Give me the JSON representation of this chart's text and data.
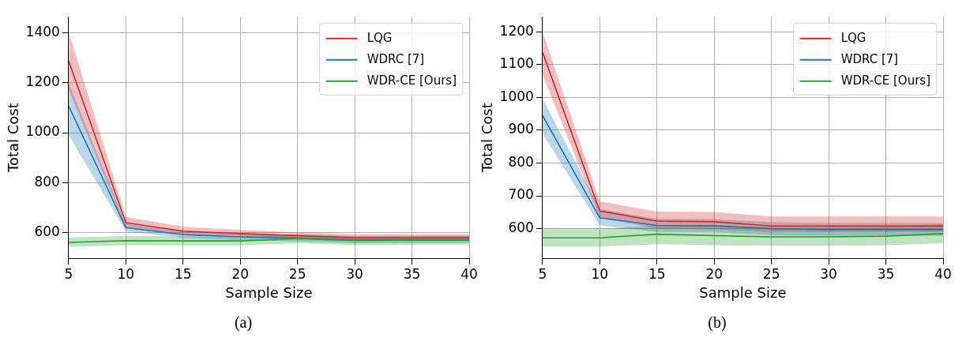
{
  "chart_data": [
    {
      "type": "line",
      "xlabel": "Sample Size",
      "ylabel": "Total Cost",
      "x": [
        5,
        10,
        15,
        20,
        25,
        30,
        35,
        40
      ],
      "xlim": [
        5,
        40
      ],
      "xticks": [
        5,
        10,
        15,
        20,
        25,
        30,
        35,
        40
      ],
      "ylim": [
        499,
        1463
      ],
      "yticks": [
        600,
        800,
        1000,
        1200,
        1400
      ],
      "grid": true,
      "legend": "top right",
      "annotations": [
        "(a)"
      ],
      "series": [
        {
          "name": "LQG",
          "color": "#d62728",
          "values": [
            1287,
            641,
            607,
            597,
            589,
            581,
            581,
            581
          ],
          "lower": [
            1172,
            619,
            592,
            583,
            576,
            568,
            568,
            568
          ],
          "upper": [
            1403,
            664,
            625,
            612,
            602,
            595,
            595,
            595
          ]
        },
        {
          "name": "WDRC [7]",
          "color": "#1f77b4",
          "values": [
            1107,
            621,
            593,
            584,
            579,
            572,
            573,
            573
          ],
          "lower": [
            991,
            606,
            580,
            571,
            566,
            559,
            560,
            560
          ],
          "upper": [
            1197,
            636,
            606,
            597,
            592,
            585,
            586,
            586
          ]
        },
        {
          "name": "WDR-CE [Ours]",
          "color": "#2ca02c",
          "values": [
            562,
            569,
            568,
            568,
            577,
            569,
            571,
            571
          ],
          "lower": [
            544,
            551,
            550,
            550,
            559,
            551,
            553,
            553
          ],
          "upper": [
            581,
            588,
            586,
            586,
            595,
            587,
            589,
            589
          ]
        }
      ]
    },
    {
      "type": "line",
      "xlabel": "Sample Size",
      "ylabel": "Total Cost",
      "x": [
        5,
        10,
        15,
        20,
        25,
        30,
        35,
        40
      ],
      "xlim": [
        5,
        40
      ],
      "xticks": [
        5,
        10,
        15,
        20,
        25,
        30,
        35,
        40
      ],
      "ylim": [
        510,
        1246
      ],
      "yticks": [
        600,
        700,
        800,
        900,
        1000,
        1100,
        1200
      ],
      "grid": true,
      "legend": "top right",
      "annotations": [
        "(b)"
      ],
      "series": [
        {
          "name": "LQG",
          "color": "#d62728",
          "values": [
            1138,
            654,
            623,
            621,
            608,
            608,
            608,
            608
          ],
          "lower": [
            1070,
            633,
            600,
            598,
            590,
            590,
            590,
            590
          ],
          "upper": [
            1200,
            683,
            652,
            651,
            637,
            637,
            637,
            637
          ]
        },
        {
          "name": "WDRC [7]",
          "color": "#1f77b4",
          "values": [
            945,
            633,
            610,
            609,
            600,
            597,
            597,
            597
          ],
          "lower": [
            890,
            610,
            590,
            589,
            580,
            578,
            578,
            578
          ],
          "upper": [
            997,
            660,
            630,
            629,
            620,
            617,
            617,
            617
          ]
        },
        {
          "name": "WDR-CE [Ours]",
          "color": "#2ca02c",
          "values": [
            572,
            572,
            583,
            579,
            575,
            575,
            577,
            585
          ],
          "lower": [
            545,
            545,
            553,
            550,
            548,
            548,
            550,
            556
          ],
          "upper": [
            600,
            600,
            610,
            608,
            605,
            605,
            606,
            614
          ]
        }
      ]
    }
  ]
}
